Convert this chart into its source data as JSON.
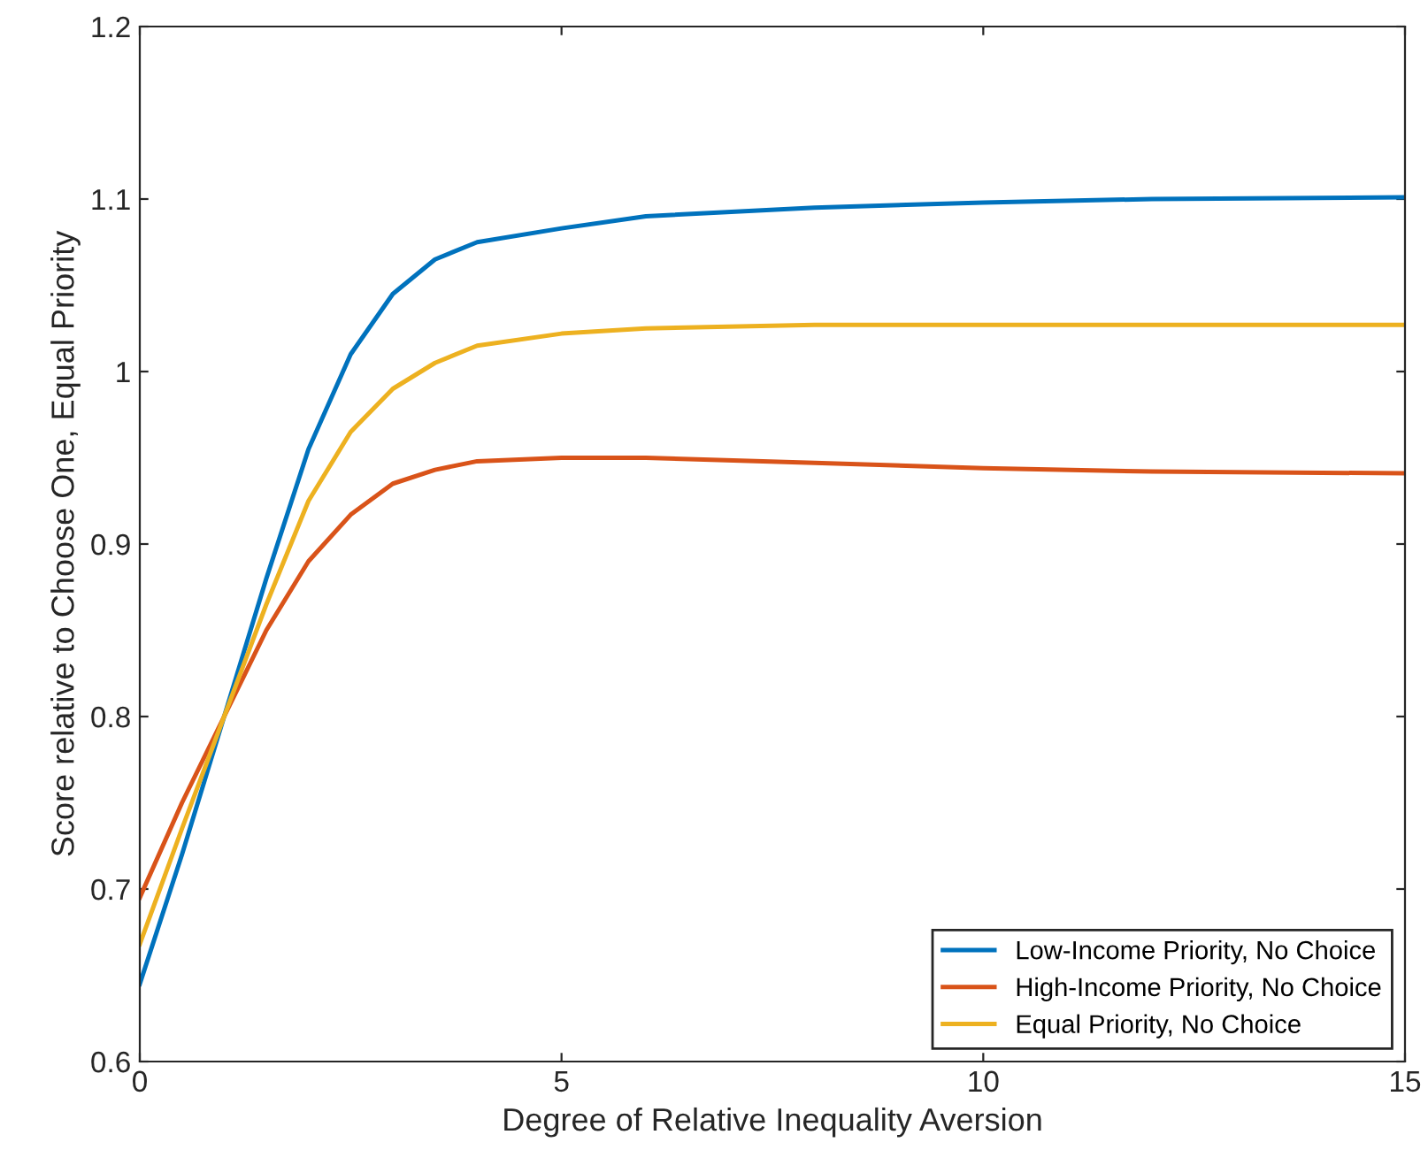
{
  "chart_data": {
    "type": "line",
    "xlabel": "Degree of Relative Inequality Aversion",
    "ylabel": "Score relative to Choose One, Equal Priority",
    "x": [
      0,
      0.5,
      1,
      1.5,
      2,
      2.5,
      3,
      3.5,
      4,
      5,
      6,
      8,
      10,
      12,
      15
    ],
    "series": [
      {
        "name": "Low-Income Priority, No Choice",
        "color": "#0072bd",
        "values": [
          0.645,
          0.72,
          0.8,
          0.88,
          0.955,
          1.01,
          1.045,
          1.065,
          1.075,
          1.083,
          1.09,
          1.095,
          1.098,
          1.1,
          1.101
        ]
      },
      {
        "name": "High-Income Priority, No Choice",
        "color": "#d95319",
        "values": [
          0.695,
          0.75,
          0.8,
          0.85,
          0.89,
          0.917,
          0.935,
          0.943,
          0.948,
          0.95,
          0.95,
          0.947,
          0.944,
          0.942,
          0.941
        ]
      },
      {
        "name": "Equal Priority, No Choice",
        "color": "#edb120",
        "values": [
          0.668,
          0.735,
          0.8,
          0.865,
          0.925,
          0.965,
          0.99,
          1.005,
          1.015,
          1.022,
          1.025,
          1.027,
          1.027,
          1.027,
          1.027
        ]
      }
    ],
    "xlim": [
      0,
      15
    ],
    "xticks": [
      0,
      5,
      10,
      15
    ],
    "ylim": [
      0.6,
      1.2
    ],
    "yticks": [
      0.6,
      0.7,
      0.8,
      0.9,
      1,
      1.1,
      1.2
    ],
    "grid": false,
    "legend": "bottom right",
    "marker": "none",
    "line_style": "solid"
  }
}
